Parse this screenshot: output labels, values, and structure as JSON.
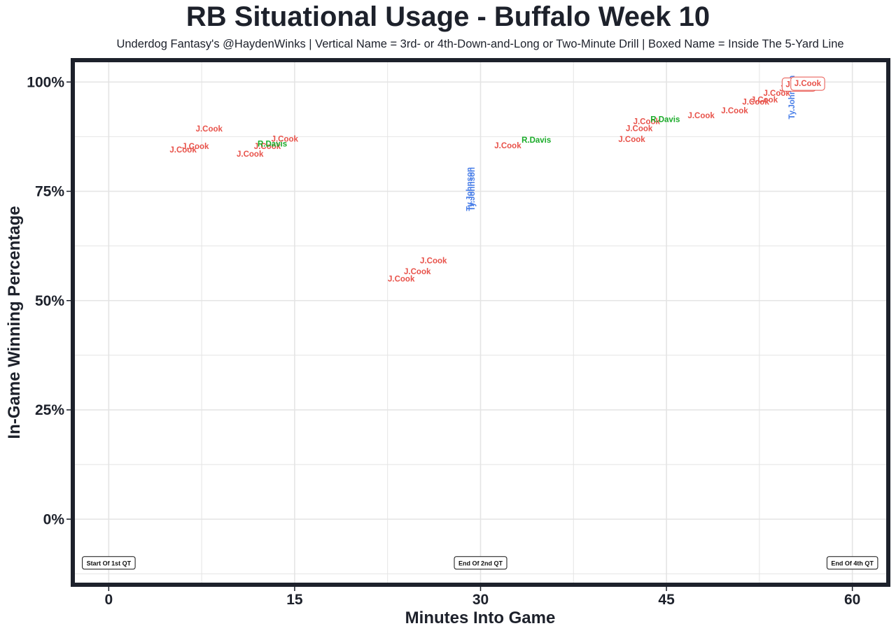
{
  "title": "RB Situational Usage - Buffalo Week 10",
  "subtitle": "Underdog Fantasy's @HaydenWinks | Vertical Name = 3rd- or 4th-Down-and-Long or Two-Minute Drill | Boxed Name = Inside The 5-Yard Line",
  "colors": {
    "J.Cook": "#e8524a",
    "R.Davis": "#1aab29",
    "Ty.Johnson": "#4a7fe8",
    "frame": "#1d212b",
    "grid": "#e4e4e4"
  },
  "chart_data": {
    "type": "scatter",
    "title": "RB Situational Usage - Buffalo Week 10",
    "xlabel": "Minutes Into Game",
    "ylabel": "In-Game Winning Percentage",
    "xlim": [
      -2.9,
      62.9
    ],
    "ylim": [
      -0.15,
      1.05
    ],
    "x_ticks": [
      0,
      15,
      30,
      45,
      60
    ],
    "x_tick_labels": [
      "0",
      "15",
      "30",
      "45",
      "60"
    ],
    "y_ticks": [
      0,
      0.25,
      0.5,
      0.75,
      1.0
    ],
    "y_tick_labels": [
      "0%",
      "25%",
      "50%",
      "75%",
      "100%"
    ],
    "grid": true,
    "series": [
      {
        "name": "J.Cook"
      },
      {
        "name": "R.Davis"
      },
      {
        "name": "Ty.Johnson"
      }
    ],
    "points": [
      {
        "player": "J.Cook",
        "x": 6.0,
        "y": 0.845,
        "vertical": false,
        "boxed": false
      },
      {
        "player": "J.Cook",
        "x": 7.0,
        "y": 0.853,
        "vertical": false,
        "boxed": false
      },
      {
        "player": "J.Cook",
        "x": 8.1,
        "y": 0.893,
        "vertical": false,
        "boxed": false
      },
      {
        "player": "J.Cook",
        "x": 11.4,
        "y": 0.836,
        "vertical": false,
        "boxed": false
      },
      {
        "player": "J.Cook",
        "x": 12.8,
        "y": 0.853,
        "vertical": false,
        "boxed": false
      },
      {
        "player": "R.Davis",
        "x": 13.2,
        "y": 0.859,
        "vertical": false,
        "boxed": false
      },
      {
        "player": "J.Cook",
        "x": 14.2,
        "y": 0.87,
        "vertical": false,
        "boxed": false
      },
      {
        "player": "J.Cook",
        "x": 23.6,
        "y": 0.55,
        "vertical": false,
        "boxed": false
      },
      {
        "player": "J.Cook",
        "x": 24.9,
        "y": 0.567,
        "vertical": false,
        "boxed": false
      },
      {
        "player": "J.Cook",
        "x": 26.2,
        "y": 0.592,
        "vertical": false,
        "boxed": false
      },
      {
        "player": "Ty.Johnson",
        "x": 29.1,
        "y": 0.755,
        "vertical": true,
        "boxed": false
      },
      {
        "player": "Ty.Johnson",
        "x": 29.3,
        "y": 0.755,
        "vertical": true,
        "boxed": false
      },
      {
        "player": "J.Cook",
        "x": 32.2,
        "y": 0.855,
        "vertical": false,
        "boxed": false
      },
      {
        "player": "R.Davis",
        "x": 34.5,
        "y": 0.868,
        "vertical": false,
        "boxed": false
      },
      {
        "player": "J.Cook",
        "x": 42.2,
        "y": 0.869,
        "vertical": false,
        "boxed": false
      },
      {
        "player": "J.Cook",
        "x": 42.8,
        "y": 0.894,
        "vertical": false,
        "boxed": false
      },
      {
        "player": "J.Cook",
        "x": 43.4,
        "y": 0.91,
        "vertical": false,
        "boxed": false
      },
      {
        "player": "R.Davis",
        "x": 44.9,
        "y": 0.915,
        "vertical": false,
        "boxed": false
      },
      {
        "player": "J.Cook",
        "x": 47.8,
        "y": 0.924,
        "vertical": false,
        "boxed": false
      },
      {
        "player": "J.Cook",
        "x": 50.5,
        "y": 0.935,
        "vertical": false,
        "boxed": false
      },
      {
        "player": "J.Cook",
        "x": 52.2,
        "y": 0.955,
        "vertical": false,
        "boxed": false
      },
      {
        "player": "J.Cook",
        "x": 52.9,
        "y": 0.96,
        "vertical": false,
        "boxed": false
      },
      {
        "player": "J.Cook",
        "x": 53.9,
        "y": 0.975,
        "vertical": false,
        "boxed": false
      },
      {
        "player": "J.Cook",
        "x": 55.2,
        "y": 0.985,
        "vertical": false,
        "boxed": false
      },
      {
        "player": "Ty.Johnson",
        "x": 55.1,
        "y": 0.965,
        "vertical": true,
        "boxed": false
      },
      {
        "player": "J.Cook",
        "x": 55.7,
        "y": 0.995,
        "vertical": false,
        "boxed": true
      },
      {
        "player": "J.Cook",
        "x": 56.4,
        "y": 0.997,
        "vertical": false,
        "boxed": true
      }
    ],
    "quarter_markers": [
      {
        "label": "Start Of 1st QT",
        "x": 0,
        "y": -0.1,
        "anchor": "start"
      },
      {
        "label": "End Of 2nd QT",
        "x": 30,
        "y": -0.1,
        "anchor": "middle"
      },
      {
        "label": "End Of 4th QT",
        "x": 60,
        "y": -0.1,
        "anchor": "end"
      }
    ]
  }
}
